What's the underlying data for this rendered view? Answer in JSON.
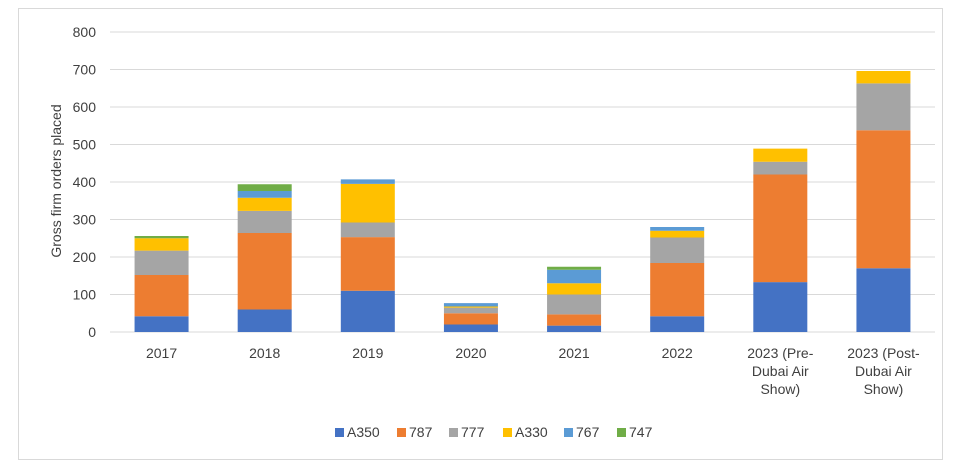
{
  "chart_data": {
    "type": "bar",
    "stacked": true,
    "ylabel": "Gross firm orders placed",
    "xlabel": "",
    "ylim": [
      0,
      800
    ],
    "y_ticks": [
      0,
      100,
      200,
      300,
      400,
      500,
      600,
      700,
      800
    ],
    "grid": true,
    "legend_position": "bottom",
    "categories": [
      [
        "2017"
      ],
      [
        "2018"
      ],
      [
        "2019"
      ],
      [
        "2020"
      ],
      [
        "2021"
      ],
      [
        "2022"
      ],
      [
        "2023 (Pre-",
        "Dubai Air",
        "Show)"
      ],
      [
        "2023 (Post-",
        "Dubai Air",
        "Show)"
      ]
    ],
    "series": [
      {
        "name": "A350",
        "color": "#4472C4",
        "values": [
          42,
          60,
          110,
          20,
          17,
          42,
          133,
          170
        ]
      },
      {
        "name": "787",
        "color": "#ED7D31",
        "values": [
          110,
          204,
          143,
          30,
          30,
          142,
          287,
          368
        ]
      },
      {
        "name": "777",
        "color": "#A5A5A5",
        "values": [
          65,
          59,
          39,
          15,
          53,
          68,
          34,
          125
        ]
      },
      {
        "name": "A330",
        "color": "#FFC000",
        "values": [
          33,
          35,
          103,
          3,
          30,
          18,
          35,
          33
        ]
      },
      {
        "name": "767",
        "color": "#5B9BD5",
        "values": [
          0,
          18,
          12,
          9,
          36,
          10,
          0,
          0
        ]
      },
      {
        "name": "747",
        "color": "#70AD47",
        "values": [
          6,
          18,
          0,
          0,
          8,
          0,
          0,
          0
        ]
      }
    ]
  }
}
